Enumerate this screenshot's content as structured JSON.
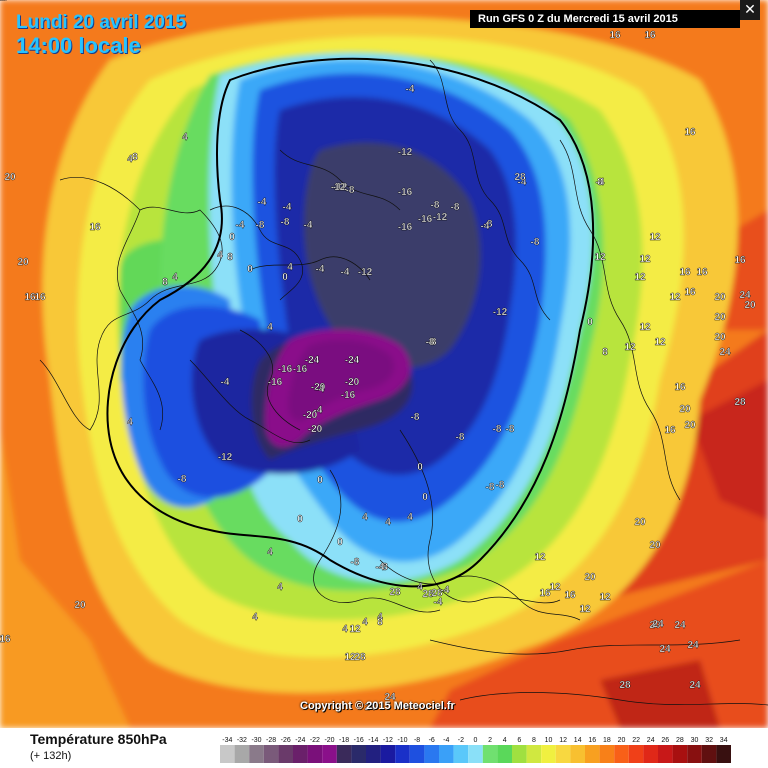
{
  "header": {
    "valid_date": "Lundi 20 avril 2015",
    "valid_hour": "14:00 locale",
    "run_info": "Run GFS 0 Z du Mercredi 15 avril 2015",
    "close_glyph": "✕"
  },
  "footer": {
    "parameter": "Température 850hPa",
    "lead_time": "(+ 132h)",
    "copyright": "Copyright © 2015 Meteociel.fr"
  },
  "legend": {
    "values": [
      "-34",
      "-32",
      "-30",
      "-28",
      "-26",
      "-24",
      "-22",
      "-20",
      "-18",
      "-16",
      "-14",
      "-12",
      "-10",
      "-8",
      "-6",
      "-4",
      "-2",
      "0",
      "2",
      "4",
      "6",
      "8",
      "10",
      "12",
      "14",
      "16",
      "18",
      "20",
      "22",
      "24",
      "26",
      "28",
      "30",
      "32",
      "34"
    ],
    "colors": [
      "#c8c8c8",
      "#a8a8a8",
      "#8a7a8a",
      "#7a5a7a",
      "#6a3a6a",
      "#6a206a",
      "#7a107a",
      "#8a108a",
      "#3a2a5a",
      "#2a2a6a",
      "#222080",
      "#1a1aa0",
      "#1a30c8",
      "#1e50e0",
      "#2a78f0",
      "#3aa0f8",
      "#5ac8fa",
      "#8ae0f8",
      "#70e070",
      "#5ad85a",
      "#a0e040",
      "#d0e840",
      "#f0f040",
      "#f8d840",
      "#f8c030",
      "#f8a020",
      "#f88018",
      "#f86018",
      "#f04018",
      "#e02818",
      "#c81818",
      "#a81010",
      "#881010",
      "#601010",
      "#381010"
    ]
  },
  "map_labels": [
    {
      "t": "-12",
      "c": "white"
    },
    {
      "t": "-8",
      "c": "white"
    },
    {
      "t": "-16",
      "c": "white"
    },
    {
      "t": "-16",
      "c": "white"
    },
    {
      "t": "-16",
      "c": "white"
    },
    {
      "t": "-8",
      "c": "white"
    },
    {
      "t": "-8",
      "c": "white"
    },
    {
      "t": "-8",
      "c": "white"
    },
    {
      "t": "-12",
      "c": "white"
    },
    {
      "t": "-12",
      "c": "white"
    },
    {
      "t": "-12",
      "c": "white"
    },
    {
      "t": "-8",
      "c": "white"
    },
    {
      "t": "-4",
      "c": "white"
    },
    {
      "t": "-4",
      "c": "white"
    },
    {
      "t": "-8",
      "c": "white"
    },
    {
      "t": "-4",
      "c": "white"
    },
    {
      "t": "-8",
      "c": "white"
    },
    {
      "t": "-4",
      "c": "white"
    },
    {
      "t": "-4",
      "c": "white"
    },
    {
      "t": "-4",
      "c": "white"
    },
    {
      "t": "-8",
      "c": "white"
    },
    {
      "t": "-8",
      "c": "white"
    },
    {
      "t": "-24",
      "c": "white"
    },
    {
      "t": "-24",
      "c": "white"
    },
    {
      "t": "-16",
      "c": "white"
    },
    {
      "t": "-16",
      "c": "white"
    },
    {
      "t": "-20",
      "c": "white"
    },
    {
      "t": "-20",
      "c": "white"
    },
    {
      "t": "-16",
      "c": "white"
    },
    {
      "t": "-20",
      "c": "white"
    },
    {
      "t": "-20",
      "c": "white"
    },
    {
      "t": "-16",
      "c": "white"
    },
    {
      "t": "-8",
      "c": "white"
    },
    {
      "t": "-8",
      "c": "white"
    },
    {
      "t": "-8",
      "c": "white"
    },
    {
      "t": "-8",
      "c": "white"
    },
    {
      "t": "-8",
      "c": "white"
    },
    {
      "t": "-12",
      "c": "white"
    },
    {
      "t": "-8",
      "c": "white"
    },
    {
      "t": "-12",
      "c": "white"
    },
    {
      "t": "-4",
      "c": "white"
    },
    {
      "t": "-4",
      "c": "white"
    },
    {
      "t": "-4",
      "c": "white"
    },
    {
      "t": "0",
      "c": "white"
    },
    {
      "t": "0",
      "c": "white"
    },
    {
      "t": "0",
      "c": "white"
    },
    {
      "t": "0",
      "c": "white"
    },
    {
      "t": "0",
      "c": "white"
    },
    {
      "t": "0",
      "c": "white"
    },
    {
      "t": "0",
      "c": "white"
    },
    {
      "t": "0",
      "c": "white"
    },
    {
      "t": "0",
      "c": "white"
    },
    {
      "t": "4",
      "c": "white"
    },
    {
      "t": "4",
      "c": "white"
    },
    {
      "t": "4",
      "c": "white"
    },
    {
      "t": "4",
      "c": "white"
    },
    {
      "t": "4",
      "c": "white"
    },
    {
      "t": "4",
      "c": "white"
    },
    {
      "t": "4",
      "c": "white"
    },
    {
      "t": "4",
      "c": "white"
    },
    {
      "t": "4",
      "c": "white"
    },
    {
      "t": "4",
      "c": "white"
    },
    {
      "t": "4",
      "c": "white"
    },
    {
      "t": "4",
      "c": "white"
    },
    {
      "t": "4",
      "c": "white"
    },
    {
      "t": "4",
      "c": "white"
    },
    {
      "t": "4",
      "c": "white"
    },
    {
      "t": "4",
      "c": "white"
    },
    {
      "t": "4",
      "c": "white"
    },
    {
      "t": "8",
      "c": "white"
    },
    {
      "t": "8",
      "c": "white"
    },
    {
      "t": "8",
      "c": "white"
    },
    {
      "t": "8",
      "c": "white"
    },
    {
      "t": "8",
      "c": "white"
    },
    {
      "t": "8",
      "c": "white"
    },
    {
      "t": "8",
      "c": "white"
    },
    {
      "t": "12",
      "c": "white"
    },
    {
      "t": "12",
      "c": "white"
    },
    {
      "t": "12",
      "c": "white"
    },
    {
      "t": "12",
      "c": "white"
    },
    {
      "t": "12",
      "c": "white"
    },
    {
      "t": "12",
      "c": "white"
    },
    {
      "t": "12",
      "c": "white"
    },
    {
      "t": "12",
      "c": "white"
    },
    {
      "t": "12",
      "c": "white"
    },
    {
      "t": "12",
      "c": "white"
    },
    {
      "t": "12",
      "c": "white"
    },
    {
      "t": "12",
      "c": "white"
    },
    {
      "t": "12",
      "c": "white"
    },
    {
      "t": "12",
      "c": "white"
    },
    {
      "t": "16",
      "c": "white"
    },
    {
      "t": "16",
      "c": "white"
    },
    {
      "t": "16",
      "c": "white"
    },
    {
      "t": "16",
      "c": "white"
    },
    {
      "t": "16",
      "c": "white"
    },
    {
      "t": "16",
      "c": "white"
    },
    {
      "t": "16",
      "c": "white"
    },
    {
      "t": "16",
      "c": "white"
    },
    {
      "t": "16",
      "c": "white"
    },
    {
      "t": "16",
      "c": "white"
    },
    {
      "t": "16",
      "c": "white"
    },
    {
      "t": "16",
      "c": "white"
    },
    {
      "t": "16",
      "c": "white"
    },
    {
      "t": "16",
      "c": "white"
    },
    {
      "t": "16",
      "c": "white"
    },
    {
      "t": "20",
      "c": "white"
    },
    {
      "t": "20",
      "c": "white"
    },
    {
      "t": "20",
      "c": "white"
    },
    {
      "t": "20",
      "c": "white"
    },
    {
      "t": "20",
      "c": "white"
    },
    {
      "t": "20",
      "c": "white"
    },
    {
      "t": "20",
      "c": "white"
    },
    {
      "t": "20",
      "c": "white"
    },
    {
      "t": "20",
      "c": "white"
    },
    {
      "t": "20",
      "c": "white"
    },
    {
      "t": "20",
      "c": "white"
    },
    {
      "t": "20",
      "c": "white"
    },
    {
      "t": "20",
      "c": "white"
    },
    {
      "t": "24",
      "c": "white"
    },
    {
      "t": "24",
      "c": "white"
    },
    {
      "t": "24",
      "c": "white"
    },
    {
      "t": "24",
      "c": "white"
    },
    {
      "t": "24",
      "c": "white"
    },
    {
      "t": "24",
      "c": "white"
    },
    {
      "t": "24",
      "c": "white"
    },
    {
      "t": "24",
      "c": "white"
    },
    {
      "t": "24",
      "c": "white"
    },
    {
      "t": "28",
      "c": "white"
    },
    {
      "t": "28",
      "c": "white"
    },
    {
      "t": "28",
      "c": "white"
    },
    {
      "t": "28",
      "c": "white"
    },
    {
      "t": "28",
      "c": "white"
    },
    {
      "t": "28",
      "c": "white"
    },
    {
      "t": "28",
      "c": "white"
    },
    {
      "t": "-4",
      "c": "white"
    },
    {
      "t": "-12",
      "c": "white"
    },
    {
      "t": "-4",
      "c": "white"
    },
    {
      "t": "-4",
      "c": "white"
    },
    {
      "t": "-4",
      "c": "white"
    },
    {
      "t": "-8",
      "c": "white"
    },
    {
      "t": "-8",
      "c": "white"
    },
    {
      "t": "-4",
      "c": "white"
    },
    {
      "t": "-4",
      "c": "white"
    },
    {
      "t": "-4",
      "c": "white"
    },
    {
      "t": "-8",
      "c": "white"
    },
    {
      "t": "-12",
      "c": "white"
    },
    {
      "t": "-4",
      "c": "white"
    },
    {
      "t": "-20",
      "c": "white"
    },
    {
      "t": "-20",
      "c": "white"
    }
  ]
}
